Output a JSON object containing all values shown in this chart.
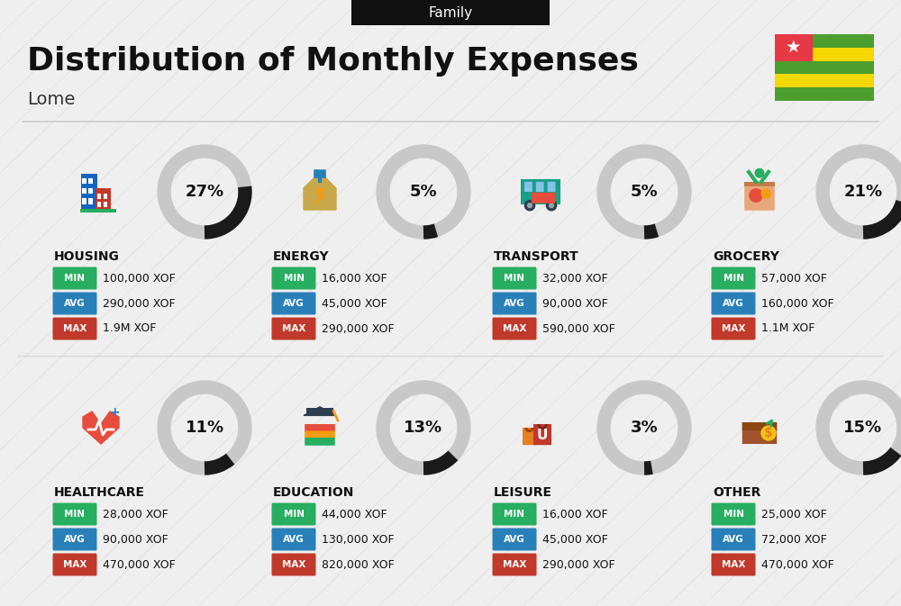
{
  "title": "Distribution of Monthly Expenses",
  "subtitle": "Lome",
  "header_label": "Family",
  "bg_color": "#efefef",
  "categories": [
    {
      "name": "HOUSING",
      "pct": 27,
      "min_val": "100,000 XOF",
      "avg_val": "290,000 XOF",
      "max_val": "1.9M XOF"
    },
    {
      "name": "ENERGY",
      "pct": 5,
      "min_val": "16,000 XOF",
      "avg_val": "45,000 XOF",
      "max_val": "290,000 XOF"
    },
    {
      "name": "TRANSPORT",
      "pct": 5,
      "min_val": "32,000 XOF",
      "avg_val": "90,000 XOF",
      "max_val": "590,000 XOF"
    },
    {
      "name": "GROCERY",
      "pct": 21,
      "min_val": "57,000 XOF",
      "avg_val": "160,000 XOF",
      "max_val": "1.1M XOF"
    },
    {
      "name": "HEALTHCARE",
      "pct": 11,
      "min_val": "28,000 XOF",
      "avg_val": "90,000 XOF",
      "max_val": "470,000 XOF"
    },
    {
      "name": "EDUCATION",
      "pct": 13,
      "min_val": "44,000 XOF",
      "avg_val": "130,000 XOF",
      "max_val": "820,000 XOF"
    },
    {
      "name": "LEISURE",
      "pct": 3,
      "min_val": "16,000 XOF",
      "avg_val": "45,000 XOF",
      "max_val": "290,000 XOF"
    },
    {
      "name": "OTHER",
      "pct": 15,
      "min_val": "25,000 XOF",
      "avg_val": "72,000 XOF",
      "max_val": "470,000 XOF"
    }
  ],
  "color_min": "#27ae60",
  "color_avg": "#2980b9",
  "color_max": "#c0392b",
  "ring_color_filled": "#1a1a1a",
  "ring_color_empty": "#c8c8c8",
  "icon_images": [
    "housing",
    "energy",
    "transport",
    "grocery",
    "healthcare",
    "education",
    "leisure",
    "other"
  ]
}
